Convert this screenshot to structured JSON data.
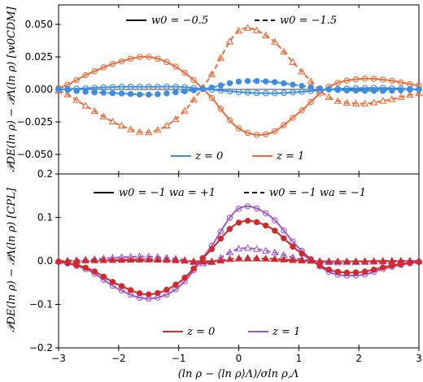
{
  "chart_data": [
    {
      "type": "line",
      "panel": "top",
      "ylabel": "𝒫DE(ln ρ) − 𝒫Λ(ln ρ) [w0CDM]",
      "xlim": [
        -3,
        3
      ],
      "ylim": [
        -0.065,
        0.065
      ],
      "yticks": [
        -0.05,
        -0.025,
        0.0,
        0.025,
        0.05
      ],
      "ytick_labels": [
        "−0.050",
        "−0.025",
        "0.000",
        "0.025",
        "0.050"
      ],
      "linestyle_legend": [
        {
          "label": "w0 = −0.5",
          "style": "solid"
        },
        {
          "label": "w0 = −1.5",
          "style": "dashed"
        }
      ],
      "color_legend": [
        {
          "label": "z = 0",
          "color": "#3b8ee0"
        },
        {
          "label": "z = 1",
          "color": "#ef6b35"
        }
      ],
      "x": [
        -3.0,
        -2.5,
        -2.0,
        -1.5,
        -1.0,
        -0.5,
        0.0,
        0.5,
        1.0,
        1.5,
        2.0,
        2.5,
        3.0
      ],
      "series": [
        {
          "name": "w0 = −0.5, z = 1",
          "color": "#ef6b35",
          "style": "solid",
          "marker": "circle",
          "values": [
            0.001,
            0.012,
            0.021,
            0.025,
            0.016,
            -0.004,
            -0.03,
            -0.034,
            -0.018,
            0.002,
            0.008,
            0.007,
            0.003
          ]
        },
        {
          "name": "w0 = −1.5, z = 1",
          "color": "#ef6b35",
          "style": "dashed",
          "marker": "triangle",
          "values": [
            -0.001,
            -0.014,
            -0.027,
            -0.033,
            -0.021,
            0.008,
            0.045,
            0.04,
            0.016,
            -0.006,
            -0.011,
            -0.008,
            -0.003
          ]
        },
        {
          "name": "w0 = −0.5, z = 0",
          "color": "#3b8ee0",
          "style": "solid",
          "marker": "circle",
          "values": [
            0.0,
            0.001,
            0.002,
            0.002,
            0.002,
            0.0,
            -0.002,
            -0.003,
            -0.002,
            0.0,
            0.001,
            0.001,
            0.0
          ]
        },
        {
          "name": "w0 = −1.5, z = 0",
          "color": "#3b8ee0",
          "style": "dashed",
          "marker": "filled-circle",
          "values": [
            0.0,
            -0.002,
            -0.003,
            -0.004,
            -0.002,
            0.001,
            0.006,
            0.006,
            0.003,
            0.0,
            -0.001,
            -0.001,
            0.0
          ]
        }
      ]
    },
    {
      "type": "line",
      "panel": "bottom",
      "ylabel": "𝒫DE(ln ρ) − 𝒫Λ(ln ρ) [CPL]",
      "xlabel": "(ln ρ − ⟨ln ρ⟩Λ)/σln ρ,Λ",
      "xlim": [
        -3,
        3
      ],
      "ylim": [
        -0.2,
        0.2
      ],
      "xticks": [
        -3,
        -2,
        -1,
        0,
        1,
        2,
        3
      ],
      "xtick_labels": [
        "−3",
        "−2",
        "−1",
        "0",
        "1",
        "2",
        "3"
      ],
      "yticks": [
        -0.2,
        -0.1,
        0.0,
        0.1,
        0.2
      ],
      "ytick_labels": [
        "−0.2",
        "−0.1",
        "0.0",
        "0.1",
        "0.2"
      ],
      "linestyle_legend": [
        {
          "label": "w0 = −1  wa = +1",
          "style": "solid"
        },
        {
          "label": "w0 = −1  wa = −1",
          "style": "dashed"
        }
      ],
      "color_legend": [
        {
          "label": "z = 0",
          "color": "#d62728"
        },
        {
          "label": "z = 1",
          "color": "#9b59d0"
        }
      ],
      "x": [
        -3.0,
        -2.5,
        -2.0,
        -1.5,
        -1.0,
        -0.5,
        0.0,
        0.5,
        1.0,
        1.5,
        2.0,
        2.5,
        3.0
      ],
      "series": [
        {
          "name": "wa = +1, z = 1",
          "color": "#9b59d0",
          "style": "solid",
          "marker": "circle",
          "values": [
            -0.002,
            -0.022,
            -0.065,
            -0.087,
            -0.06,
            0.025,
            0.12,
            0.105,
            0.03,
            -0.025,
            -0.033,
            -0.015,
            -0.003
          ]
        },
        {
          "name": "wa = +1, z = 0",
          "color": "#d62728",
          "style": "solid",
          "marker": "filled-circle",
          "values": [
            -0.002,
            -0.018,
            -0.055,
            -0.077,
            -0.05,
            0.02,
            0.088,
            0.078,
            0.022,
            -0.02,
            -0.026,
            -0.012,
            -0.002
          ]
        },
        {
          "name": "wa = −1, z = 1",
          "color": "#9b59d0",
          "style": "dashed",
          "marker": "triangle",
          "values": [
            0.0,
            0.003,
            0.008,
            0.01,
            0.004,
            -0.005,
            0.028,
            0.022,
            0.005,
            -0.003,
            -0.003,
            -0.001,
            0.0
          ]
        },
        {
          "name": "wa = −1, z = 0",
          "color": "#d62728",
          "style": "dashed",
          "marker": "filled-triangle",
          "values": [
            0.0,
            0.001,
            0.002,
            0.003,
            0.001,
            -0.002,
            0.006,
            0.005,
            0.001,
            -0.001,
            -0.001,
            0.0,
            0.0
          ]
        }
      ]
    }
  ]
}
